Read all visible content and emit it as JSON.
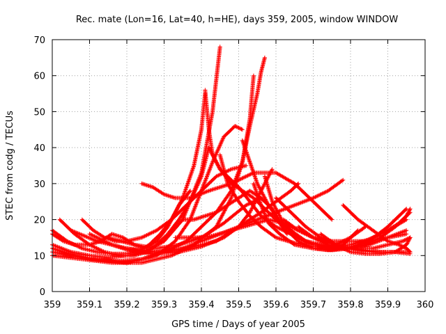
{
  "chart_data": {
    "type": "scatter",
    "title": "Rec. mate (Lon=16, Lat=40, h=HE), days 359, 2005, window WINDOW",
    "xlabel": "GPS time / Days of year 2005",
    "ylabel": "STEC from codg / TECUs",
    "xlim": [
      359,
      360
    ],
    "ylim": [
      0,
      70
    ],
    "xticks": [
      "359",
      "359.1",
      "359.2",
      "359.3",
      "359.4",
      "359.5",
      "359.6",
      "359.7",
      "359.8",
      "359.9",
      "360"
    ],
    "yticks": [
      "0",
      "10",
      "20",
      "30",
      "40",
      "50",
      "60",
      "70"
    ],
    "grid": true,
    "marker": "plus",
    "color": "#ff0000",
    "series": [
      {
        "x": [
          359.0,
          359.04,
          359.08,
          359.12,
          359.16,
          359.2,
          359.23,
          359.26,
          359.29,
          359.32,
          359.35,
          359.38,
          359.4,
          359.41
        ],
        "y": [
          17,
          14,
          12,
          11,
          10.5,
          10.5,
          11,
          13,
          16,
          20,
          26,
          35,
          45,
          55
        ]
      },
      {
        "x": [
          359.41,
          359.42,
          359.43,
          359.45,
          359.47,
          359.5,
          359.53,
          359.56,
          359.6,
          359.64,
          359.68,
          359.72,
          359.76,
          359.8,
          359.84,
          359.88,
          359.92,
          359.96
        ],
        "y": [
          56,
          45,
          38,
          34,
          32,
          29,
          25,
          21,
          18,
          16,
          14,
          13,
          12,
          12,
          11.5,
          11,
          11,
          10.5
        ]
      },
      {
        "x": [
          359.0,
          359.05,
          359.1,
          359.15,
          359.2,
          359.25,
          359.3,
          359.35,
          359.4,
          359.43,
          359.45
        ],
        "y": [
          13,
          11,
          10,
          9.5,
          10,
          11,
          14,
          20,
          33,
          50,
          68
        ]
      },
      {
        "x": [
          359.45,
          359.47,
          359.5,
          359.53,
          359.56,
          359.6,
          359.65,
          359.7,
          359.75,
          359.8,
          359.85,
          359.9,
          359.95
        ],
        "y": [
          38,
          30,
          25,
          21,
          18,
          15,
          13.5,
          12.5,
          12.5,
          13,
          14.5,
          17,
          20
        ]
      },
      {
        "x": [
          359.0,
          359.06,
          359.12,
          359.18,
          359.24,
          359.3,
          359.36,
          359.4,
          359.44,
          359.48,
          359.51,
          359.53,
          359.55,
          359.56,
          359.57
        ],
        "y": [
          12,
          10,
          9,
          8.5,
          9,
          11,
          14,
          18,
          22,
          28,
          36,
          46,
          55,
          61,
          65
        ]
      },
      {
        "x": [
          359.57,
          359.59,
          359.62,
          359.66,
          359.7,
          359.75,
          359.8,
          359.85,
          359.9,
          359.95
        ],
        "y": [
          32,
          25,
          19,
          15,
          13,
          12,
          12,
          13,
          15,
          17
        ]
      },
      {
        "x": [
          359.0,
          359.08,
          359.16,
          359.24,
          359.32,
          359.38,
          359.44,
          359.48,
          359.51,
          359.53,
          359.54
        ],
        "y": [
          10,
          9,
          8,
          8,
          10,
          13,
          18,
          26,
          36,
          48,
          60
        ]
      },
      {
        "x": [
          359.54,
          359.56,
          359.58,
          359.61,
          359.65,
          359.7,
          359.75,
          359.8,
          359.85,
          359.9,
          359.95
        ],
        "y": [
          30,
          24,
          19,
          16,
          13,
          12,
          11.5,
          12,
          14,
          18,
          23
        ]
      },
      {
        "x": [
          359.0,
          359.1,
          359.2,
          359.28,
          359.33,
          359.37,
          359.4,
          359.43,
          359.46,
          359.49,
          359.51
        ],
        "y": [
          11,
          9,
          8,
          10,
          14,
          20,
          28,
          36,
          43,
          46,
          45
        ]
      },
      {
        "x": [
          359.51,
          359.53,
          359.55,
          359.58,
          359.62,
          359.66,
          359.7,
          359.74,
          359.78,
          359.82
        ],
        "y": [
          42,
          36,
          30,
          24,
          18,
          14,
          12,
          12,
          13,
          17
        ]
      },
      {
        "x": [
          359.02,
          359.06,
          359.1,
          359.14,
          359.18,
          359.22,
          359.25,
          359.28,
          359.31,
          359.34,
          359.37,
          359.4,
          359.42
        ],
        "y": [
          20,
          16,
          13,
          11,
          10,
          10,
          11,
          13,
          16,
          20,
          25,
          32,
          40
        ]
      },
      {
        "x": [
          359.42,
          359.45,
          359.48,
          359.51,
          359.54,
          359.57,
          359.6,
          359.64,
          359.68,
          359.72,
          359.76,
          359.8,
          359.84
        ],
        "y": [
          40,
          34,
          30,
          28,
          26,
          23,
          20,
          17,
          14,
          13,
          13,
          15,
          18
        ]
      },
      {
        "x": [
          359.1,
          359.16,
          359.22,
          359.28,
          359.34,
          359.4,
          359.46,
          359.5,
          359.53,
          359.56,
          359.59
        ],
        "y": [
          16,
          13,
          11,
          10.5,
          11,
          12.5,
          15,
          18,
          22,
          28,
          34
        ]
      },
      {
        "x": [
          359.05,
          359.12,
          359.2,
          359.28,
          359.36,
          359.44,
          359.5,
          359.56,
          359.6,
          359.64,
          359.66
        ],
        "y": [
          17,
          14,
          12,
          11,
          12,
          14,
          18,
          22,
          25,
          28,
          30
        ]
      },
      {
        "x": [
          359.15,
          359.22,
          359.28,
          359.34,
          359.4,
          359.46,
          359.52,
          359.56,
          359.59,
          359.61,
          359.63
        ],
        "y": [
          15,
          13,
          12,
          13,
          15,
          19,
          24,
          26,
          23,
          19,
          16
        ]
      },
      {
        "x": [
          359.33,
          359.36,
          359.39,
          359.43,
          359.48,
          359.53,
          359.58,
          359.62,
          359.66,
          359.7,
          359.75,
          359.8,
          359.85,
          359.9,
          359.95
        ],
        "y": [
          15,
          15,
          15,
          15.5,
          17,
          18.5,
          20,
          19,
          17,
          15,
          14,
          14,
          14,
          15,
          16
        ]
      },
      {
        "x": [
          359.24,
          359.27,
          359.3,
          359.33,
          359.37,
          359.42,
          359.48,
          359.54,
          359.6,
          359.65,
          359.7,
          359.75
        ],
        "y": [
          30,
          29,
          27,
          26,
          26,
          28,
          30,
          33,
          33,
          30,
          25,
          20
        ]
      },
      {
        "x": [
          359.2,
          359.25,
          359.3,
          359.35,
          359.4,
          359.45,
          359.5,
          359.55,
          359.6,
          359.65,
          359.7,
          359.74,
          359.78
        ],
        "y": [
          12,
          11,
          11,
          12,
          14,
          16,
          18,
          20,
          22,
          24,
          26,
          28,
          31
        ]
      },
      {
        "x": [
          359.6,
          359.64,
          359.68,
          359.72,
          359.76,
          359.8,
          359.84,
          359.88,
          359.92,
          359.96
        ],
        "y": [
          26,
          22,
          18,
          15,
          13,
          12,
          13,
          15,
          18,
          22
        ]
      },
      {
        "x": [
          359.62,
          359.66,
          359.7,
          359.74,
          359.78,
          359.82,
          359.86,
          359.9,
          359.94,
          359.96
        ],
        "y": [
          20,
          17,
          15,
          13.5,
          12.5,
          12,
          12,
          13,
          14,
          15
        ]
      },
      {
        "x": [
          359.66,
          359.7,
          359.74,
          359.78,
          359.82,
          359.86,
          359.9,
          359.94,
          359.96
        ],
        "y": [
          18,
          15,
          13,
          12,
          11.5,
          11,
          11,
          11,
          11
        ]
      },
      {
        "x": [
          359.7,
          359.74,
          359.78,
          359.82,
          359.86,
          359.9,
          359.93,
          359.95,
          359.96
        ],
        "y": [
          12,
          11.5,
          12,
          13,
          15,
          17,
          19,
          21,
          23
        ]
      },
      {
        "x": [
          359.72,
          359.76,
          359.8,
          359.84,
          359.88,
          359.92,
          359.95,
          359.96
        ],
        "y": [
          16,
          13,
          11,
          10.5,
          10.5,
          11,
          13,
          15
        ]
      },
      {
        "x": [
          359.78,
          359.82,
          359.86,
          359.9,
          359.93,
          359.95,
          359.96
        ],
        "y": [
          24,
          20,
          17,
          14,
          13,
          12,
          11
        ]
      },
      {
        "x": [
          359.0,
          359.03,
          359.06,
          359.1,
          359.13,
          359.16,
          359.19,
          359.22,
          359.25,
          359.28,
          359.31,
          359.34,
          359.37
        ],
        "y": [
          16,
          14,
          13,
          13,
          14,
          16,
          15,
          13,
          12,
          14,
          18,
          24,
          28
        ]
      },
      {
        "x": [
          359.08,
          359.11,
          359.14,
          359.17,
          359.2,
          359.24,
          359.28,
          359.32,
          359.36,
          359.4,
          359.44,
          359.48,
          359.52
        ],
        "y": [
          20,
          17,
          15,
          14,
          14,
          15,
          17,
          20,
          24,
          28,
          32,
          34,
          35
        ]
      },
      {
        "x": [
          359.35,
          359.38,
          359.41,
          359.44,
          359.47,
          359.5,
          359.53,
          359.56,
          359.59
        ],
        "y": [
          20,
          20,
          21,
          22,
          24,
          26,
          28,
          26,
          23
        ]
      }
    ]
  }
}
